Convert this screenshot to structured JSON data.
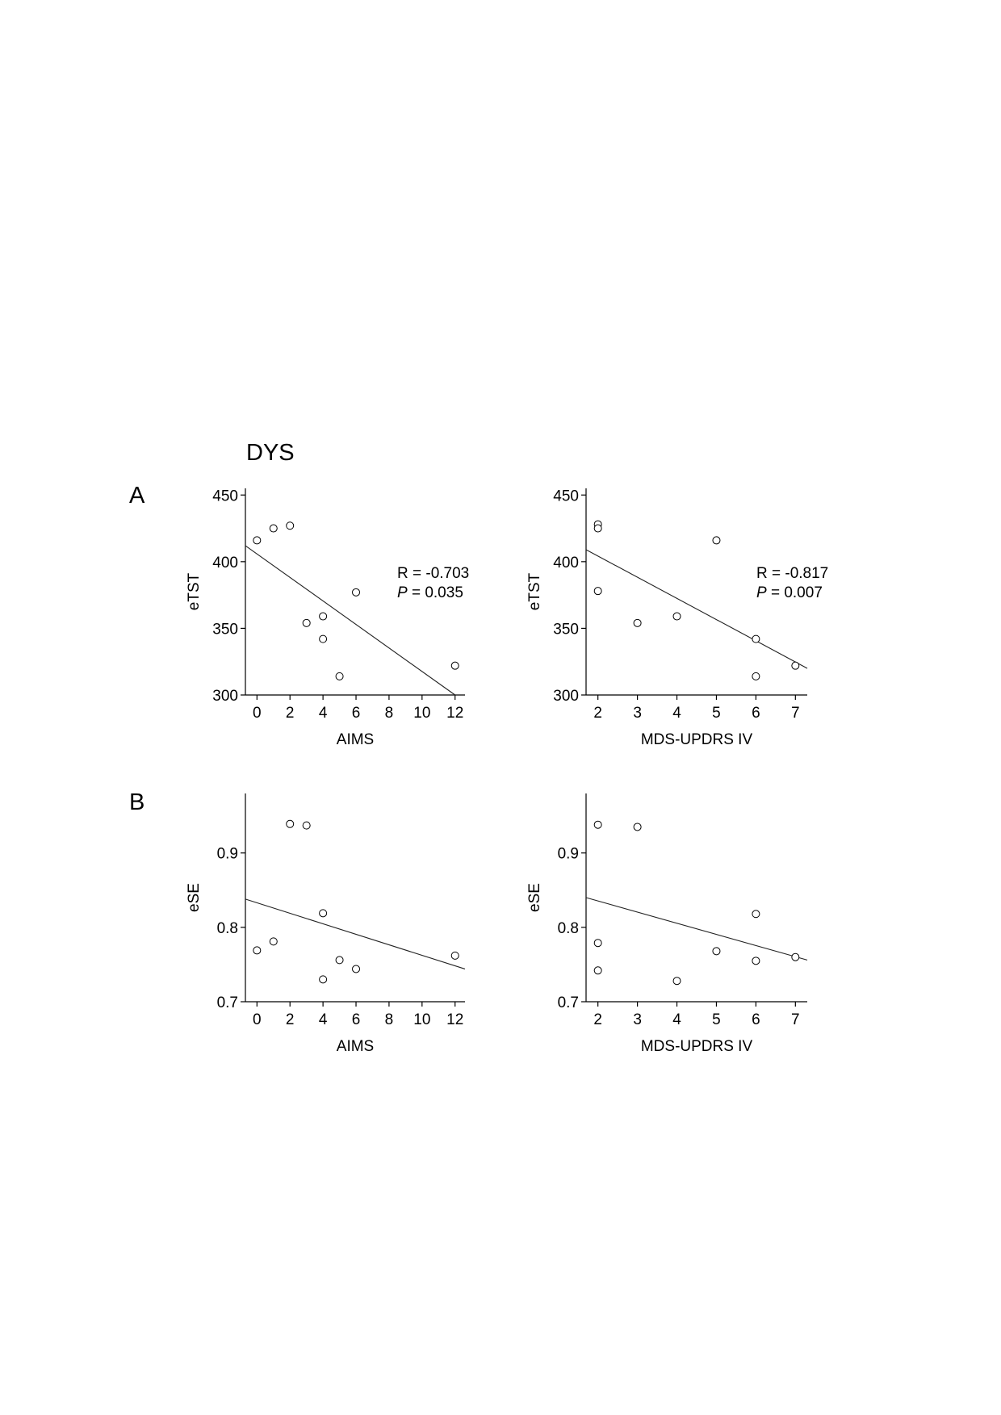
{
  "figure": {
    "title": "DYS",
    "panel_labels": [
      "A",
      "B"
    ]
  },
  "chart_data": [
    {
      "type": "scatter",
      "panel": "A",
      "xlabel": "AIMS",
      "ylabel": "eTST",
      "xlim": [
        -0.7,
        12.6
      ],
      "ylim": [
        300,
        455
      ],
      "xticks": [
        0,
        2,
        4,
        6,
        8,
        10,
        12
      ],
      "yticks": [
        300,
        350,
        400,
        450
      ],
      "points": [
        [
          0,
          416
        ],
        [
          1,
          425
        ],
        [
          2,
          427
        ],
        [
          3,
          354
        ],
        [
          4,
          359
        ],
        [
          4,
          342
        ],
        [
          5,
          314
        ],
        [
          6,
          377
        ],
        [
          12,
          322
        ]
      ],
      "fit_line": [
        [
          -0.7,
          412
        ],
        [
          12,
          300
        ]
      ],
      "stat_r": "R = -0.703",
      "stat_p_label": "P",
      "stat_p_value": " = 0.035",
      "grid": false
    },
    {
      "type": "scatter",
      "panel": "A",
      "xlabel": "MDS-UPDRS IV",
      "ylabel": "eTST",
      "xlim": [
        1.7,
        7.3
      ],
      "ylim": [
        300,
        455
      ],
      "xticks": [
        2,
        3,
        4,
        5,
        6,
        7
      ],
      "yticks": [
        300,
        350,
        400,
        450
      ],
      "points": [
        [
          2,
          428
        ],
        [
          2,
          425
        ],
        [
          2,
          378
        ],
        [
          3,
          354
        ],
        [
          4,
          359
        ],
        [
          5,
          416
        ],
        [
          6,
          342
        ],
        [
          6,
          314
        ],
        [
          7,
          322
        ]
      ],
      "fit_line": [
        [
          1.7,
          409
        ],
        [
          7.3,
          320
        ]
      ],
      "stat_r": "R = -0.817",
      "stat_p_label": "P",
      "stat_p_value": " = 0.007",
      "grid": false
    },
    {
      "type": "scatter",
      "panel": "B",
      "xlabel": "AIMS",
      "ylabel": "eSE",
      "xlim": [
        -0.7,
        12.6
      ],
      "ylim": [
        0.7,
        0.98
      ],
      "xticks": [
        0,
        2,
        4,
        6,
        8,
        10,
        12
      ],
      "yticks": [
        0.7,
        0.8,
        0.9
      ],
      "ytick_labels": [
        "0.7",
        "0.8",
        "0.9"
      ],
      "points": [
        [
          0,
          0.769
        ],
        [
          1,
          0.781
        ],
        [
          2,
          0.939
        ],
        [
          3,
          0.937
        ],
        [
          4,
          0.819
        ],
        [
          4,
          0.73
        ],
        [
          5,
          0.756
        ],
        [
          6,
          0.744
        ],
        [
          12,
          0.762
        ]
      ],
      "fit_line": [
        [
          -0.7,
          0.838
        ],
        [
          12.6,
          0.744
        ]
      ],
      "grid": false
    },
    {
      "type": "scatter",
      "panel": "B",
      "xlabel": "MDS-UPDRS IV",
      "ylabel": "eSE",
      "xlim": [
        1.7,
        7.3
      ],
      "ylim": [
        0.7,
        0.98
      ],
      "xticks": [
        2,
        3,
        4,
        5,
        6,
        7
      ],
      "yticks": [
        0.7,
        0.8,
        0.9
      ],
      "ytick_labels": [
        "0.7",
        "0.8",
        "0.9"
      ],
      "points": [
        [
          2,
          0.938
        ],
        [
          2,
          0.779
        ],
        [
          2,
          0.742
        ],
        [
          3,
          0.935
        ],
        [
          4,
          0.728
        ],
        [
          5,
          0.768
        ],
        [
          6,
          0.818
        ],
        [
          6,
          0.755
        ],
        [
          7,
          0.76
        ]
      ],
      "fit_line": [
        [
          1.7,
          0.84
        ],
        [
          7.3,
          0.756
        ]
      ],
      "grid": false
    }
  ]
}
